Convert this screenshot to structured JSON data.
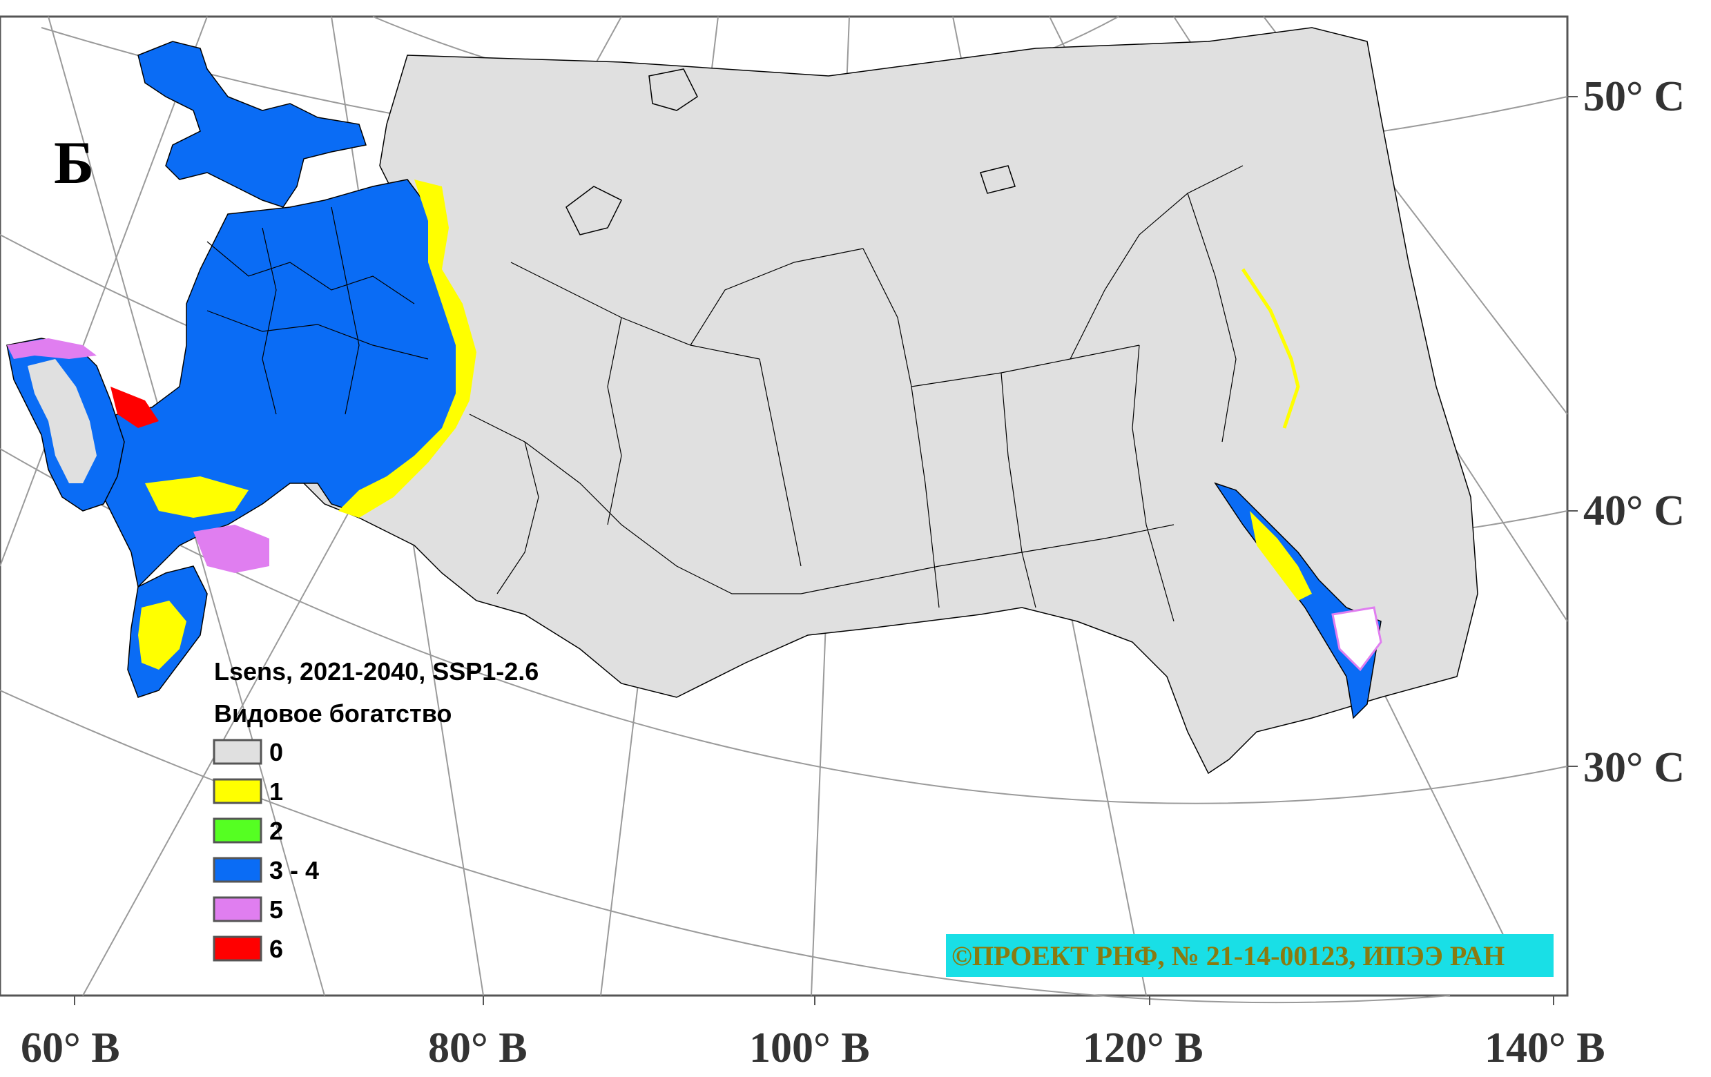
{
  "panel_letter": "Б",
  "legend": {
    "title_line1": "Lsens, 2021-2040, SSP1-2.6",
    "title_line2": "Видовое богатство",
    "items": [
      {
        "label": "0",
        "color": "#e0e0e0"
      },
      {
        "label": "1",
        "color": "#ffff00"
      },
      {
        "label": "2",
        "color": "#55ff22"
      },
      {
        "label": "3 - 4",
        "color": "#0a6cf5"
      },
      {
        "label": "5",
        "color": "#e07ef0"
      },
      {
        "label": "6",
        "color": "#ff0000"
      }
    ]
  },
  "lat_labels": [
    "50° С",
    "40° С",
    "30° С"
  ],
  "lon_labels": [
    "60° В",
    "80° В",
    "100° В",
    "120° В",
    "140° В"
  ],
  "credit": {
    "text": "©ПРОЕКТ РНФ, № 21-14-00123, ИПЭЭ РАН",
    "background": "#19dfe6",
    "color": "#8a7a10"
  },
  "colors": {
    "frame": "#555555",
    "graticule": "#9a9a9a",
    "borders": "#000000"
  }
}
